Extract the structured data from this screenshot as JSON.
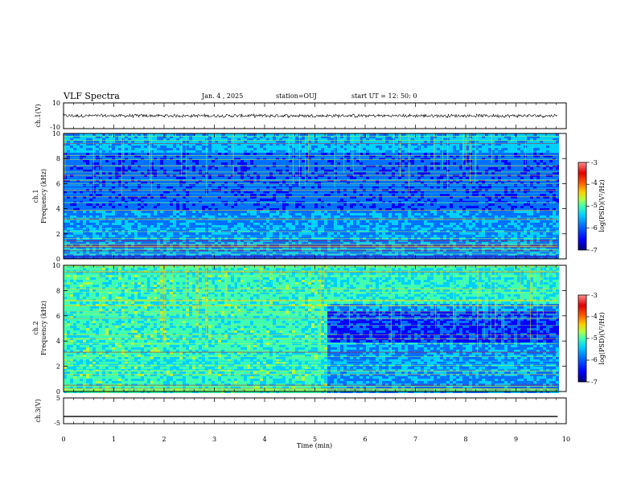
{
  "header": {
    "title": "VLF Spectra",
    "date": "Jan. 4 , 2025",
    "station": "station=OUJ",
    "start": "start UT =  12: 50: 0"
  },
  "chart_data": {
    "type": "heatmap",
    "title": "VLF Spectra",
    "xlabel": "Time (min)",
    "xlim": [
      0,
      10
    ],
    "x_ticks": [
      0,
      1,
      2,
      3,
      4,
      5,
      6,
      7,
      8,
      9,
      10
    ],
    "x_tick_labels": [
      "0",
      "1",
      "2",
      "3",
      "4",
      "5",
      "6",
      "7",
      "8",
      "9",
      "10"
    ],
    "data_end_min": 9.83,
    "panels": [
      {
        "id": "ch1-waveform",
        "type": "line",
        "ylabel": "ch.1(V)",
        "ylim": [
          -10,
          10
        ],
        "y_tick_labels": [
          "10",
          "-10"
        ],
        "baseline_value": 0,
        "noise_band": [
          -1.5,
          1.5
        ]
      },
      {
        "id": "ch1-spectrogram",
        "type": "heatmap",
        "ylabel_lines": [
          "ch.1",
          "Frequency (kHz)"
        ],
        "ylim": [
          0,
          10
        ],
        "y_ticks": [
          0,
          2,
          4,
          6,
          8,
          10
        ],
        "y_tick_labels": [
          "0",
          "2",
          "4",
          "6",
          "8",
          "10"
        ],
        "colorbar": {
          "label": "log(PSD)(V²/Hz)",
          "range": [
            -7,
            -3
          ],
          "tick_labels": [
            "-3",
            "-4",
            "-5",
            "-6",
            "-7"
          ]
        }
      },
      {
        "id": "ch2-spectrogram",
        "type": "heatmap",
        "ylabel_lines": [
          "ch.2",
          "Frequency (kHz)"
        ],
        "ylim": [
          0,
          10
        ],
        "y_ticks": [
          0,
          2,
          4,
          6,
          8,
          10
        ],
        "y_tick_labels": [
          "0",
          "2",
          "4",
          "6",
          "8",
          "10"
        ],
        "colorbar": {
          "label": "log(PSD)(V²/Hz)",
          "range": [
            -7,
            -3
          ],
          "tick_labels": [
            "-3",
            "-4",
            "-5",
            "-6",
            "-7"
          ]
        }
      },
      {
        "id": "ch3-waveform",
        "type": "line",
        "ylabel": "ch.3(V)",
        "ylim": [
          -5,
          5
        ],
        "y_tick_labels": [
          "5",
          "-5"
        ],
        "baseline_value": -2.2
      }
    ]
  },
  "colors": {
    "background": "#ffffff",
    "frame": "#000000",
    "colormap": [
      "#00007a",
      "#0000ff",
      "#0070ff",
      "#00d0ff",
      "#40ffb0",
      "#b0ff40",
      "#ffd000",
      "#ff6000",
      "#e00000",
      "#ff9090"
    ]
  }
}
